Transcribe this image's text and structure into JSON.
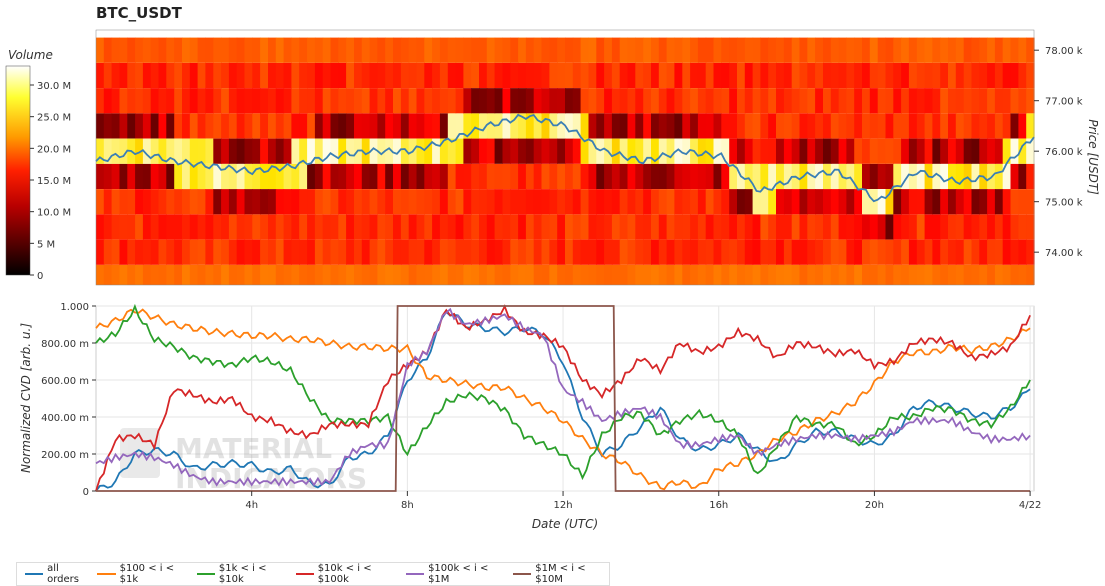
{
  "title": "BTC_USDT",
  "chart_data": [
    {
      "type": "heatmap",
      "title": "BTC_USDT",
      "ylabel": "Price [USDT]",
      "colorbar_label": "Volume",
      "colorbar_ticks": [
        "0",
        "5 M",
        "10.0 M",
        "15.0 M",
        "20.0 M",
        "25.0 M",
        "30.0 M"
      ],
      "colorbar_range": [
        0,
        33
      ],
      "y_ticks": [
        74000,
        75000,
        76000,
        77000,
        78000
      ],
      "y_tick_labels": [
        "74.00 k",
        "75.00 k",
        "76.00 k",
        "77.00 k",
        "78.00 k"
      ],
      "ylim": [
        73350,
        78400
      ],
      "price_bins": [
        73500,
        74000,
        74500,
        75000,
        75500,
        76000,
        76500,
        77000,
        77500,
        78000
      ],
      "x_hours": [
        0,
        1,
        2,
        3,
        4,
        5,
        6,
        7,
        8,
        9,
        10,
        11,
        12,
        13,
        14,
        15,
        16,
        17,
        18,
        19,
        20,
        21,
        22,
        23,
        24
      ],
      "price_line": {
        "x_hours": [
          0,
          1,
          2,
          3,
          4,
          5,
          6,
          7,
          8,
          9,
          10,
          11,
          12,
          13,
          14,
          15,
          16,
          17,
          18,
          19,
          20,
          21,
          22,
          23,
          24
        ],
        "values": [
          75800,
          76000,
          75800,
          75700,
          75600,
          75700,
          75900,
          76000,
          76000,
          76200,
          76500,
          76700,
          76500,
          76000,
          75800,
          76000,
          75900,
          75200,
          75500,
          75600,
          75000,
          75600,
          75400,
          75500,
          76300
        ]
      }
    },
    {
      "type": "line",
      "xlabel": "Date (UTC)",
      "ylabel": "Normalized CVD [arb. u.]",
      "x_tick_labels": [
        "4h",
        "8h",
        "12h",
        "16h",
        "20h",
        "4/22"
      ],
      "x_tick_hours": [
        4,
        8,
        12,
        16,
        20,
        24
      ],
      "y_tick_labels": [
        "0",
        "200.00 m",
        "400.00 m",
        "600.00 m",
        "800.00 m",
        "1.000"
      ],
      "y_ticks": [
        0,
        0.2,
        0.4,
        0.6,
        0.8,
        1.0
      ],
      "ylim": [
        0,
        1
      ],
      "xlim": [
        0,
        24.1
      ],
      "watermark": [
        "MATERIAL",
        "INDICATORS"
      ],
      "series": [
        {
          "name": "all orders",
          "color": "#1f77b4",
          "x": [
            0,
            0.5,
            1,
            1.5,
            2,
            2.5,
            3,
            3.5,
            4,
            4.5,
            5,
            5.5,
            6,
            6.5,
            7,
            7.5,
            8,
            8.5,
            9,
            9.5,
            10,
            10.5,
            11,
            11.5,
            12,
            12.5,
            13,
            13.5,
            14,
            14.5,
            15,
            15.5,
            16,
            16.5,
            17,
            17.5,
            18,
            18.5,
            19,
            19.5,
            20,
            20.5,
            21,
            21.5,
            22,
            22.5,
            23,
            23.5,
            24
          ],
          "values": [
            0.0,
            0.05,
            0.2,
            0.22,
            0.2,
            0.12,
            0.14,
            0.15,
            0.14,
            0.1,
            0.12,
            0.04,
            0.03,
            0.18,
            0.2,
            0.3,
            0.6,
            0.72,
            0.98,
            0.9,
            0.88,
            0.86,
            0.88,
            0.85,
            0.7,
            0.4,
            0.2,
            0.25,
            0.35,
            0.45,
            0.28,
            0.22,
            0.25,
            0.3,
            0.22,
            0.15,
            0.25,
            0.32,
            0.32,
            0.28,
            0.25,
            0.3,
            0.45,
            0.48,
            0.45,
            0.42,
            0.4,
            0.45,
            0.55
          ]
        },
        {
          "name": "$100 < i < $1k",
          "color": "#ff7f0e",
          "x": [
            0,
            0.5,
            1,
            1.5,
            2,
            2.5,
            3,
            3.5,
            4,
            4.5,
            5,
            5.5,
            6,
            6.5,
            7,
            7.5,
            8,
            8.5,
            9,
            9.5,
            10,
            10.5,
            11,
            11.5,
            12,
            12.5,
            13,
            13.5,
            14,
            14.5,
            15,
            15.5,
            16,
            16.5,
            17,
            17.5,
            18,
            18.5,
            19,
            19.5,
            20,
            20.5,
            21,
            21.5,
            22,
            22.5,
            23,
            23.5,
            24
          ],
          "values": [
            0.88,
            0.92,
            0.98,
            0.94,
            0.9,
            0.88,
            0.86,
            0.85,
            0.84,
            0.84,
            0.82,
            0.82,
            0.8,
            0.78,
            0.78,
            0.77,
            0.77,
            0.62,
            0.6,
            0.58,
            0.56,
            0.56,
            0.5,
            0.45,
            0.38,
            0.28,
            0.2,
            0.16,
            0.08,
            0.02,
            0.05,
            0.02,
            0.12,
            0.15,
            0.2,
            0.28,
            0.32,
            0.38,
            0.42,
            0.48,
            0.58,
            0.7,
            0.75,
            0.75,
            0.78,
            0.76,
            0.78,
            0.82,
            0.88
          ]
        },
        {
          "name": "$1k < i < $10k",
          "color": "#2ca02c",
          "x": [
            0,
            0.5,
            1,
            1.5,
            2,
            2.5,
            3,
            3.5,
            4,
            4.5,
            5,
            5.5,
            6,
            6.5,
            7,
            7.5,
            8,
            8.5,
            9,
            9.5,
            10,
            10.5,
            11,
            11.5,
            12,
            12.5,
            13,
            13.5,
            14,
            14.5,
            15,
            15.5,
            16,
            16.5,
            17,
            17.5,
            18,
            18.5,
            19,
            19.5,
            20,
            20.5,
            21,
            21.5,
            22,
            22.5,
            23,
            23.5,
            24
          ],
          "values": [
            0.8,
            0.85,
            0.98,
            0.82,
            0.78,
            0.72,
            0.7,
            0.68,
            0.72,
            0.7,
            0.65,
            0.5,
            0.38,
            0.38,
            0.38,
            0.4,
            0.2,
            0.35,
            0.48,
            0.52,
            0.5,
            0.44,
            0.3,
            0.25,
            0.2,
            0.08,
            0.3,
            0.4,
            0.42,
            0.3,
            0.38,
            0.42,
            0.38,
            0.3,
            0.08,
            0.25,
            0.4,
            0.36,
            0.36,
            0.25,
            0.3,
            0.4,
            0.4,
            0.45,
            0.44,
            0.38,
            0.36,
            0.45,
            0.6
          ]
        },
        {
          "name": "$10k < i < $100k",
          "color": "#d62728",
          "x": [
            0,
            0.5,
            1,
            1.5,
            2,
            2.5,
            3,
            3.5,
            4,
            4.5,
            5,
            5.5,
            6,
            6.5,
            7,
            7.5,
            8,
            8.5,
            9,
            9.5,
            10,
            10.5,
            11,
            11.5,
            12,
            12.5,
            13,
            13.5,
            14,
            14.5,
            15,
            15.5,
            16,
            16.5,
            17,
            17.5,
            18,
            18.5,
            19,
            19.5,
            20,
            20.5,
            21,
            21.5,
            22,
            22.5,
            23,
            23.5,
            24
          ],
          "values": [
            0.0,
            0.28,
            0.3,
            0.25,
            0.55,
            0.52,
            0.48,
            0.5,
            0.4,
            0.38,
            0.32,
            0.3,
            0.36,
            0.36,
            0.36,
            0.6,
            0.68,
            0.75,
            0.98,
            0.88,
            0.92,
            0.98,
            0.86,
            0.84,
            0.78,
            0.6,
            0.52,
            0.6,
            0.72,
            0.65,
            0.8,
            0.75,
            0.78,
            0.86,
            0.82,
            0.72,
            0.8,
            0.78,
            0.74,
            0.76,
            0.68,
            0.7,
            0.8,
            0.82,
            0.8,
            0.72,
            0.74,
            0.78,
            0.95
          ]
        },
        {
          "name": "$100k < i < $1M",
          "color": "#9467bd",
          "x": [
            0,
            0.5,
            1,
            1.5,
            2,
            2.5,
            3,
            3.5,
            4,
            4.5,
            5,
            5.5,
            6,
            6.5,
            7,
            7.5,
            8,
            8.5,
            9,
            9.5,
            10,
            10.5,
            11,
            11.5,
            12,
            12.5,
            13,
            13.5,
            14,
            14.5,
            15,
            15.5,
            16,
            16.5,
            17,
            17.5,
            18,
            18.5,
            19,
            19.5,
            20,
            20.5,
            21,
            21.5,
            22,
            22.5,
            23,
            23.5,
            24
          ],
          "values": [
            0.15,
            0.18,
            0.2,
            0.18,
            0.14,
            0.08,
            0.05,
            0.05,
            0.05,
            0.05,
            0.05,
            0.05,
            0.05,
            0.2,
            0.25,
            0.25,
            0.68,
            0.75,
            0.98,
            0.9,
            0.92,
            0.95,
            0.88,
            0.84,
            0.55,
            0.48,
            0.38,
            0.42,
            0.45,
            0.4,
            0.25,
            0.25,
            0.28,
            0.3,
            0.2,
            0.25,
            0.28,
            0.3,
            0.3,
            0.28,
            0.3,
            0.32,
            0.38,
            0.38,
            0.38,
            0.32,
            0.28,
            0.28,
            0.3
          ]
        },
        {
          "name": "$1M < i < $10M",
          "color": "#8c564b",
          "x": [
            0,
            7.7,
            7.75,
            13.3,
            13.35,
            24
          ],
          "values": [
            0.0,
            0.0,
            1.0,
            1.0,
            0.0,
            0.0
          ]
        }
      ]
    }
  ],
  "legend": [
    {
      "label": "all orders",
      "color": "#1f77b4"
    },
    {
      "label": "$100 < i < $1k",
      "color": "#ff7f0e"
    },
    {
      "label": "$1k < i < $10k",
      "color": "#2ca02c"
    },
    {
      "label": "$10k < i < $100k",
      "color": "#d62728"
    },
    {
      "label": "$100k < i < $1M",
      "color": "#9467bd"
    },
    {
      "label": "$1M < i < $10M",
      "color": "#8c564b"
    }
  ]
}
